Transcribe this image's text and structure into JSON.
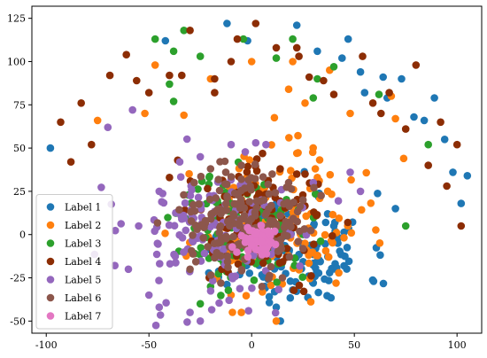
{
  "chart_data": {
    "type": "scatter",
    "title": "",
    "xlabel": "",
    "ylabel": "",
    "xlim": [
      -107,
      112
    ],
    "ylim": [
      -57,
      132
    ],
    "xticks": [
      -100,
      -50,
      0,
      50,
      100
    ],
    "yticks": [
      -50,
      -25,
      0,
      25,
      50,
      75,
      100,
      125
    ],
    "grid": false,
    "legend_position": "lower-left",
    "series": [
      {
        "name": "Label 1",
        "color": "#1f77b4",
        "cluster": {
          "cx": 22,
          "cy": -10,
          "sx": 17,
          "sy": 17,
          "n": 130,
          "seed": 11
        },
        "points": [
          [
            -98,
            50
          ],
          [
            -42,
            112
          ],
          [
            -12,
            122
          ],
          [
            -2,
            112
          ],
          [
            22,
            121
          ],
          [
            32,
            106
          ],
          [
            44,
            102
          ],
          [
            47,
            113
          ],
          [
            53,
            94
          ],
          [
            55,
            82
          ],
          [
            64,
            91
          ],
          [
            66,
            79
          ],
          [
            73,
            90
          ],
          [
            79,
            68
          ],
          [
            84,
            66
          ],
          [
            89,
            79
          ],
          [
            94,
            55
          ],
          [
            98,
            36
          ],
          [
            105,
            34
          ],
          [
            102,
            18
          ],
          [
            70,
            15
          ],
          [
            14,
            -50
          ],
          [
            12,
            -42
          ],
          [
            20,
            -32
          ],
          [
            30,
            -28
          ],
          [
            38,
            -22
          ],
          [
            45,
            -18
          ],
          [
            40,
            5
          ],
          [
            42,
            -5
          ],
          [
            37,
            12
          ]
        ]
      },
      {
        "name": "Label 2",
        "color": "#ff7f0e",
        "cluster": {
          "cx": 12,
          "cy": 6,
          "sx": 20,
          "sy": 20,
          "n": 130,
          "seed": 23
        },
        "points": [
          [
            -75,
            66
          ],
          [
            -52,
            70
          ],
          [
            -47,
            98
          ],
          [
            -33,
            69
          ],
          [
            -20,
            90
          ],
          [
            0,
            100
          ],
          [
            18,
            84
          ],
          [
            20,
            100
          ],
          [
            26,
            76
          ],
          [
            38,
            95
          ],
          [
            48,
            70
          ],
          [
            68,
            80
          ],
          [
            70,
            67
          ],
          [
            74,
            44
          ],
          [
            22,
            47
          ],
          [
            31,
            38
          ],
          [
            32,
            33
          ],
          [
            12,
            -50
          ],
          [
            -5,
            -45
          ],
          [
            -10,
            -35
          ]
        ]
      },
      {
        "name": "Label 3",
        "color": "#2ca02c",
        "cluster": {
          "cx": -3,
          "cy": 3,
          "sx": 16,
          "sy": 16,
          "n": 110,
          "seed": 37
        },
        "points": [
          [
            -47,
            113
          ],
          [
            -38,
            106
          ],
          [
            -33,
            118
          ],
          [
            -25,
            103
          ],
          [
            -4,
            113
          ],
          [
            -40,
            87
          ],
          [
            -38,
            77
          ],
          [
            12,
            102
          ],
          [
            20,
            113
          ],
          [
            30,
            79
          ],
          [
            32,
            90
          ],
          [
            40,
            97
          ],
          [
            62,
            81
          ],
          [
            86,
            52
          ],
          [
            75,
            5
          ],
          [
            -20,
            -30
          ],
          [
            -25,
            -40
          ]
        ]
      },
      {
        "name": "Label 4",
        "color": "#8c2d04",
        "cluster": {
          "cx": 5,
          "cy": 8,
          "sx": 16,
          "sy": 16,
          "n": 120,
          "seed": 41
        },
        "points": [
          [
            -93,
            65
          ],
          [
            -88,
            42
          ],
          [
            -83,
            76
          ],
          [
            -78,
            52
          ],
          [
            -69,
            92
          ],
          [
            -61,
            104
          ],
          [
            -56,
            89
          ],
          [
            -50,
            82
          ],
          [
            -40,
            92
          ],
          [
            -34,
            92
          ],
          [
            -30,
            118
          ],
          [
            -18,
            82
          ],
          [
            -18,
            90
          ],
          [
            -10,
            100
          ],
          [
            -7,
            113
          ],
          [
            2,
            122
          ],
          [
            12,
            108
          ],
          [
            22,
            108
          ],
          [
            23,
            103
          ],
          [
            28,
            91
          ],
          [
            35,
            89
          ],
          [
            40,
            81
          ],
          [
            54,
            103
          ],
          [
            59,
            76
          ],
          [
            63,
            70
          ],
          [
            67,
            82
          ],
          [
            75,
            61
          ],
          [
            80,
            98
          ],
          [
            86,
            40
          ],
          [
            92,
            65
          ],
          [
            95,
            28
          ],
          [
            100,
            52
          ],
          [
            102,
            5
          ],
          [
            -36,
            43
          ],
          [
            -40,
            33
          ],
          [
            22,
            35
          ],
          [
            26,
            35
          ]
        ]
      },
      {
        "name": "Label 5",
        "color": "#9467bd",
        "cluster": {
          "cx": -18,
          "cy": 0,
          "sx": 22,
          "sy": 22,
          "n": 140,
          "seed": 53
        },
        "points": [
          [
            -58,
            72
          ],
          [
            -70,
            62
          ],
          [
            -35,
            42
          ],
          [
            -45,
            25
          ],
          [
            -25,
            45
          ],
          [
            -10,
            52
          ],
          [
            2,
            53
          ],
          [
            7,
            52
          ],
          [
            48,
            36
          ],
          [
            53,
            25
          ],
          [
            30,
            30
          ],
          [
            -50,
            -35
          ],
          [
            -45,
            -42
          ],
          [
            -25,
            -50
          ],
          [
            -30,
            -45
          ],
          [
            -60,
            -20
          ],
          [
            -55,
            5
          ]
        ]
      },
      {
        "name": "Label 6",
        "color": "#8c564b",
        "cluster": {
          "cx": -5,
          "cy": 5,
          "sx": 14,
          "sy": 14,
          "n": 180,
          "seed": 67
        },
        "points": [
          [
            -28,
            30
          ],
          [
            -20,
            38
          ],
          [
            -5,
            40
          ],
          [
            10,
            35
          ],
          [
            18,
            30
          ],
          [
            25,
            20
          ],
          [
            -30,
            -20
          ],
          [
            -15,
            -28
          ],
          [
            5,
            -30
          ],
          [
            15,
            -25
          ]
        ]
      },
      {
        "name": "Label 7",
        "color": "#e377c2",
        "cluster": {
          "cx": 3,
          "cy": -3,
          "sx": 4,
          "sy": 4,
          "n": 45,
          "seed": 79
        },
        "points": [
          [
            -2,
            4
          ],
          [
            6,
            -8
          ],
          [
            8,
            2
          ],
          [
            0,
            -6
          ],
          [
            -3,
            -2
          ]
        ]
      }
    ]
  }
}
